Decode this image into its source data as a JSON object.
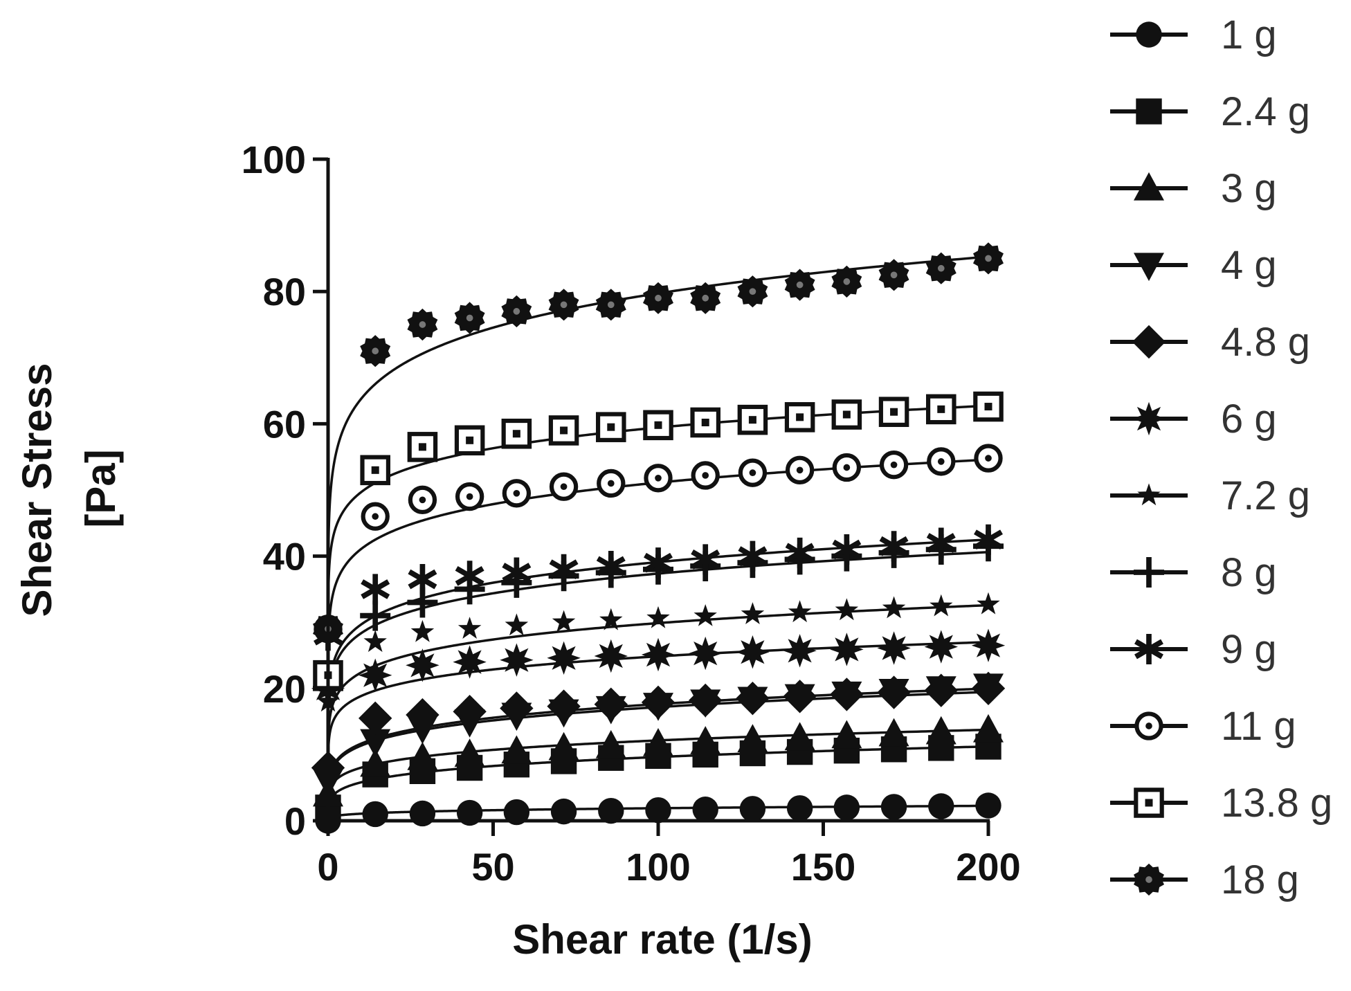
{
  "chart_data": {
    "type": "scatter",
    "title": "",
    "xlabel": "Shear rate (1/s)",
    "ylabel_lines": [
      "Shear Stress",
      "[Pa]"
    ],
    "xlim": [
      0,
      200
    ],
    "ylim": [
      0,
      100
    ],
    "x_ticks": [
      0,
      50,
      100,
      150,
      200
    ],
    "y_ticks": [
      0,
      20,
      40,
      60,
      80,
      100
    ],
    "grid": false,
    "legend_position": "right",
    "x": [
      0,
      14.3,
      28.6,
      42.9,
      57.1,
      71.4,
      85.7,
      100,
      114.3,
      128.6,
      142.9,
      157.1,
      171.4,
      185.7,
      200
    ],
    "series": [
      {
        "name": "1 g",
        "marker": "circle",
        "values": [
          0,
          1.0,
          1.1,
          1.2,
          1.3,
          1.4,
          1.5,
          1.6,
          1.7,
          1.8,
          1.9,
          2.0,
          2.1,
          2.2,
          2.3
        ]
      },
      {
        "name": "2.4 g",
        "marker": "square",
        "values": [
          2,
          7.0,
          7.5,
          8.0,
          8.5,
          9.0,
          9.5,
          9.8,
          10.0,
          10.2,
          10.4,
          10.6,
          10.8,
          11.0,
          11.2
        ]
      },
      {
        "name": "3 g",
        "marker": "triangle-up",
        "values": [
          4,
          8.5,
          9.5,
          10.0,
          10.5,
          11.0,
          11.3,
          11.6,
          11.9,
          12.2,
          12.5,
          12.8,
          13.1,
          13.4,
          13.7
        ]
      },
      {
        "name": "4 g",
        "marker": "triangle-down",
        "values": [
          6,
          12.0,
          14.0,
          15.0,
          16.0,
          16.5,
          17.0,
          17.5,
          18.0,
          18.4,
          18.8,
          19.2,
          19.6,
          20.0,
          20.4
        ]
      },
      {
        "name": "4.8 g",
        "marker": "diamond",
        "values": [
          8,
          15.5,
          16.0,
          16.5,
          17.0,
          17.3,
          17.6,
          17.9,
          18.2,
          18.5,
          18.8,
          19.1,
          19.4,
          19.7,
          20.0
        ]
      },
      {
        "name": "6 g",
        "marker": "asterisk",
        "values": [
          20,
          22.0,
          23.5,
          24.0,
          24.3,
          24.6,
          24.9,
          25.1,
          25.3,
          25.5,
          25.7,
          25.9,
          26.1,
          26.3,
          26.5
        ]
      },
      {
        "name": "7.2 g",
        "marker": "small-star",
        "values": [
          18,
          27.0,
          28.5,
          29.0,
          29.5,
          30.0,
          30.3,
          30.6,
          30.9,
          31.2,
          31.5,
          31.8,
          32.1,
          32.4,
          32.7
        ]
      },
      {
        "name": "8 g",
        "marker": "plus",
        "values": [
          20,
          31.0,
          33.0,
          35.0,
          36.0,
          37.0,
          37.5,
          38.0,
          38.5,
          39.0,
          39.5,
          40.0,
          40.5,
          41.0,
          41.5
        ]
      },
      {
        "name": "9 g",
        "marker": "x-star",
        "values": [
          28,
          35.0,
          36.5,
          37.0,
          37.5,
          38.0,
          38.5,
          39.0,
          39.5,
          40.0,
          40.5,
          41.0,
          41.5,
          42.0,
          42.5
        ]
      },
      {
        "name": "11 g",
        "marker": "circle-open",
        "values": [
          29,
          46.0,
          48.5,
          49.0,
          49.5,
          50.5,
          51.0,
          51.8,
          52.2,
          52.6,
          53.0,
          53.4,
          53.8,
          54.3,
          54.8
        ]
      },
      {
        "name": "13.8 g",
        "marker": "square-open",
        "values": [
          22,
          53.0,
          56.5,
          57.5,
          58.5,
          59.0,
          59.5,
          59.8,
          60.2,
          60.6,
          61.0,
          61.4,
          61.8,
          62.2,
          62.6
        ]
      },
      {
        "name": "18 g",
        "marker": "circle-gear",
        "values": [
          29,
          71.0,
          75.0,
          76.0,
          77.0,
          78.0,
          78.0,
          79.0,
          79.0,
          80.0,
          81.0,
          81.5,
          82.5,
          83.5,
          85.0
        ]
      }
    ],
    "fits": [
      {
        "name": "1 g",
        "k": 0.6,
        "n": 0.25
      },
      {
        "name": "2.4 g",
        "k": 3.5,
        "n": 0.22
      },
      {
        "name": "3 g",
        "k": 5.3,
        "n": 0.18
      },
      {
        "name": "4 g",
        "k": 7.7,
        "n": 0.18
      },
      {
        "name": "4.8 g",
        "k": 7.5,
        "n": 0.18
      },
      {
        "name": "6 g",
        "k": 14.3,
        "n": 0.12
      },
      {
        "name": "7.2 g",
        "k": 16.8,
        "n": 0.125
      },
      {
        "name": "8 g",
        "k": 21.5,
        "n": 0.12
      },
      {
        "name": "9 g",
        "k": 22.5,
        "n": 0.12
      },
      {
        "name": "11 g",
        "k": 33.0,
        "n": 0.095
      },
      {
        "name": "13.8 g",
        "k": 41.5,
        "n": 0.078
      },
      {
        "name": "18 g",
        "k": 51.0,
        "n": 0.097
      }
    ]
  }
}
